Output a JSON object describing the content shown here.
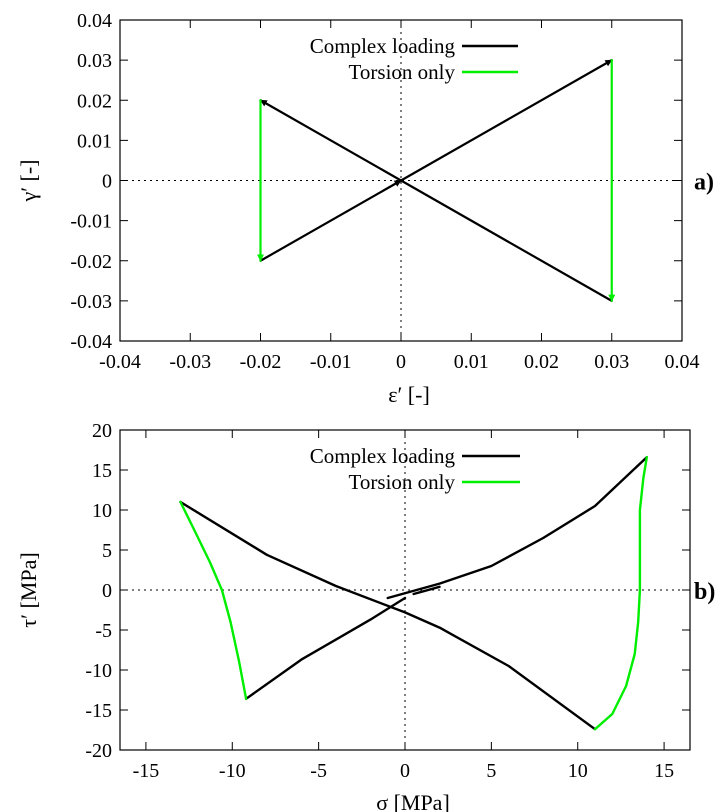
{
  "chart_data": [
    {
      "type": "line",
      "panel_label": "a)",
      "xlabel": "ε′ [-]",
      "ylabel": "γ′ [-]",
      "xlim": [
        -0.04,
        0.04
      ],
      "ylim": [
        -0.04,
        0.04
      ],
      "xticks": [
        -0.04,
        -0.03,
        -0.02,
        -0.01,
        0,
        0.01,
        0.02,
        0.03,
        0.04
      ],
      "yticks": [
        -0.04,
        -0.03,
        -0.02,
        -0.01,
        0,
        0.01,
        0.02,
        0.03,
        0.04
      ],
      "xtick_labels": [
        "-0.04",
        "-0.03",
        "-0.02",
        "-0.01",
        "0",
        "0.01",
        "0.02",
        "0.03",
        "0.04"
      ],
      "ytick_labels": [
        "-0.04",
        "-0.03",
        "-0.02",
        "-0.01",
        "0",
        "0.01",
        "0.02",
        "0.03",
        "0.04"
      ],
      "zero_lines": true,
      "legend_position": "top-center",
      "series": [
        {
          "name": "Complex loading",
          "color": "#000000",
          "arrows": true,
          "segments": [
            [
              [
                0,
                0
              ],
              [
                0.03,
                0.03
              ]
            ],
            [
              [
                0.03,
                -0.03
              ],
              [
                -0.02,
                0.02
              ]
            ],
            [
              [
                -0.02,
                -0.02
              ],
              [
                0,
                0
              ]
            ]
          ]
        },
        {
          "name": "Torsion only",
          "color": "#00ee00",
          "arrows": true,
          "segments": [
            [
              [
                0.03,
                0.03
              ],
              [
                0.03,
                -0.03
              ]
            ],
            [
              [
                -0.02,
                0.02
              ],
              [
                -0.02,
                -0.02
              ]
            ]
          ]
        }
      ]
    },
    {
      "type": "line",
      "panel_label": "b)",
      "xlabel": "σ [MPa]",
      "ylabel": "τ′ [MPa]",
      "xlim": [
        -16.5,
        16.5
      ],
      "ylim": [
        -20,
        20
      ],
      "xticks": [
        -15,
        -10,
        -5,
        0,
        5,
        10,
        15
      ],
      "yticks": [
        -20,
        -15,
        -10,
        -5,
        0,
        5,
        10,
        15,
        20
      ],
      "xtick_labels": [
        "-15",
        "-10",
        "-5",
        "0",
        "5",
        "10",
        "15"
      ],
      "ytick_labels": [
        "-20",
        "-15",
        "-10",
        "-5",
        "0",
        "5",
        "10",
        "15",
        "20"
      ],
      "zero_lines": true,
      "legend_position": "top-center",
      "series": [
        {
          "name": "Complex loading",
          "color": "#000000",
          "arrows": false,
          "segments": [
            [
              [
                0.5,
                -0.5
              ],
              [
                2,
                0.4
              ]
            ],
            [
              [
                -1,
                -1
              ],
              [
                2,
                0.8
              ],
              [
                5,
                3
              ],
              [
                8,
                6.5
              ],
              [
                11,
                10.5
              ],
              [
                14,
                16.6
              ]
            ],
            [
              [
                11,
                -17.4
              ],
              [
                6,
                -9.5
              ],
              [
                2,
                -4.7
              ],
              [
                0,
                -2.8
              ],
              [
                -4,
                0.5
              ],
              [
                -8,
                4.4
              ],
              [
                -13,
                11
              ]
            ],
            [
              [
                -9.2,
                -13.6
              ],
              [
                -6,
                -8.7
              ],
              [
                -2,
                -3.7
              ],
              [
                0,
                -1
              ]
            ]
          ]
        },
        {
          "name": "Torsion only",
          "color": "#00ee00",
          "arrows": false,
          "segments": [
            [
              [
                14,
                16.6
              ],
              [
                13.8,
                14
              ],
              [
                13.6,
                10
              ],
              [
                13.6,
                5
              ],
              [
                13.6,
                0
              ],
              [
                13.5,
                -4
              ],
              [
                13.3,
                -8
              ],
              [
                12.8,
                -12
              ],
              [
                12,
                -15.5
              ],
              [
                11,
                -17.4
              ]
            ],
            [
              [
                -13,
                11
              ],
              [
                -12.2,
                7.5
              ],
              [
                -11.3,
                3.5
              ],
              [
                -10.6,
                0
              ],
              [
                -10.1,
                -4
              ],
              [
                -9.6,
                -9
              ],
              [
                -9.2,
                -13.6
              ]
            ]
          ]
        }
      ]
    }
  ]
}
